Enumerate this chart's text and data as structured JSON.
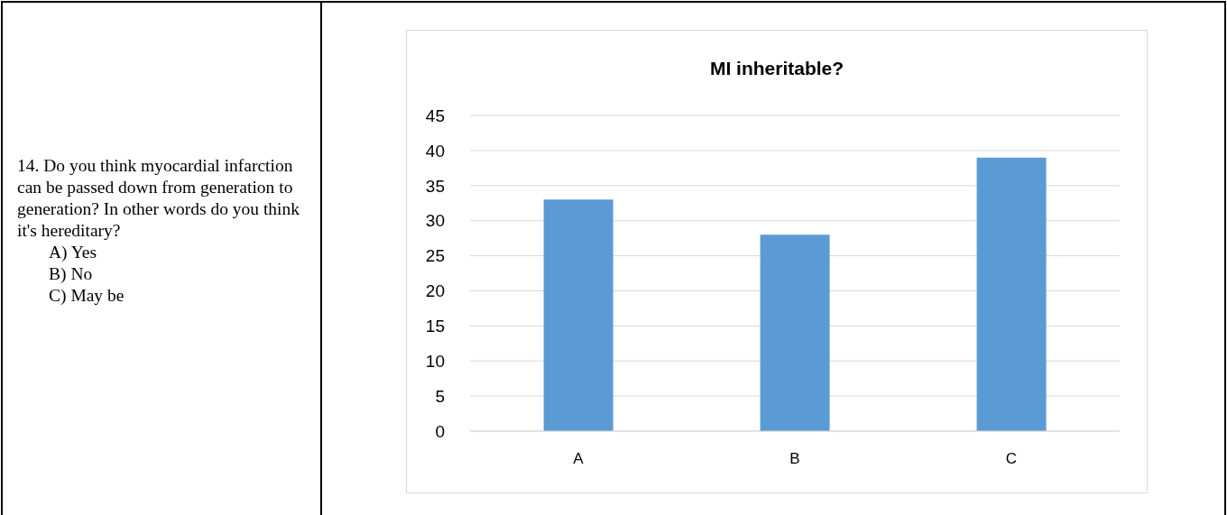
{
  "chart_data": [
    {
      "type": "other",
      "annotations": [
        "14.  Do you think myocardial infarction can be passed down from generation to generation? In other words do you think it's hereditary?",
        "A) Yes",
        "B) No",
        "C) May be"
      ]
    },
    {
      "type": "bar",
      "title": "MI inheritable?",
      "categories": [
        "A",
        "B",
        "C"
      ],
      "values": [
        33,
        28,
        39
      ],
      "color": "#5b9bd5",
      "ylim": [
        0,
        45
      ],
      "yticks": [
        0,
        5,
        10,
        15,
        20,
        25,
        30,
        35,
        40,
        45
      ],
      "grid": "y"
    }
  ]
}
